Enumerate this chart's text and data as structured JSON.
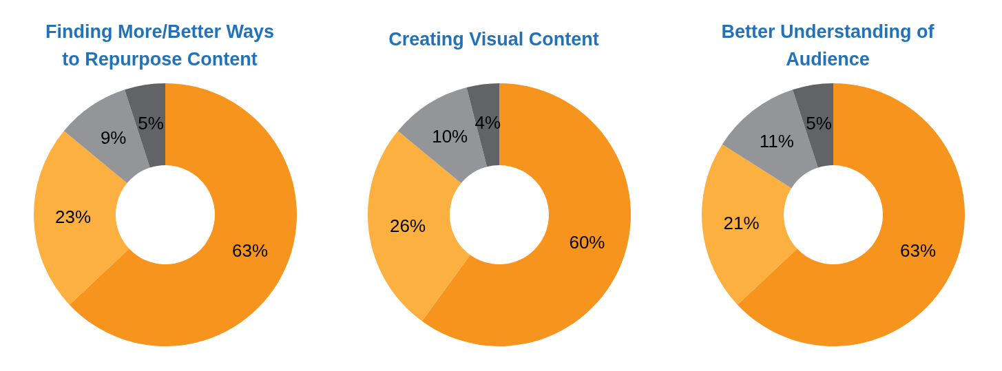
{
  "chart_data": [
    {
      "type": "donut",
      "title": "Finding More/Better Ways to Repurpose Content",
      "categories": [
        null,
        null,
        null,
        null
      ],
      "values": [
        63,
        23,
        9,
        5
      ],
      "value_labels": [
        "63%",
        "23%",
        "9%",
        "5%"
      ],
      "colors": [
        "#f7941d",
        "#fbb040",
        "#939598",
        "#626366"
      ]
    },
    {
      "type": "donut",
      "title": "Creating Visual Content",
      "categories": [
        null,
        null,
        null,
        null
      ],
      "values": [
        60,
        26,
        10,
        4
      ],
      "value_labels": [
        "60%",
        "26%",
        "10%",
        "4%"
      ],
      "colors": [
        "#f7941d",
        "#fbb040",
        "#939598",
        "#626366"
      ]
    },
    {
      "type": "donut",
      "title": "Better Understanding of Audience",
      "categories": [
        null,
        null,
        null,
        null
      ],
      "values": [
        63,
        21,
        11,
        5
      ],
      "value_labels": [
        "63%",
        "21%",
        "11%",
        "5%"
      ],
      "colors": [
        "#f7941d",
        "#fbb040",
        "#939598",
        "#626366"
      ]
    }
  ]
}
